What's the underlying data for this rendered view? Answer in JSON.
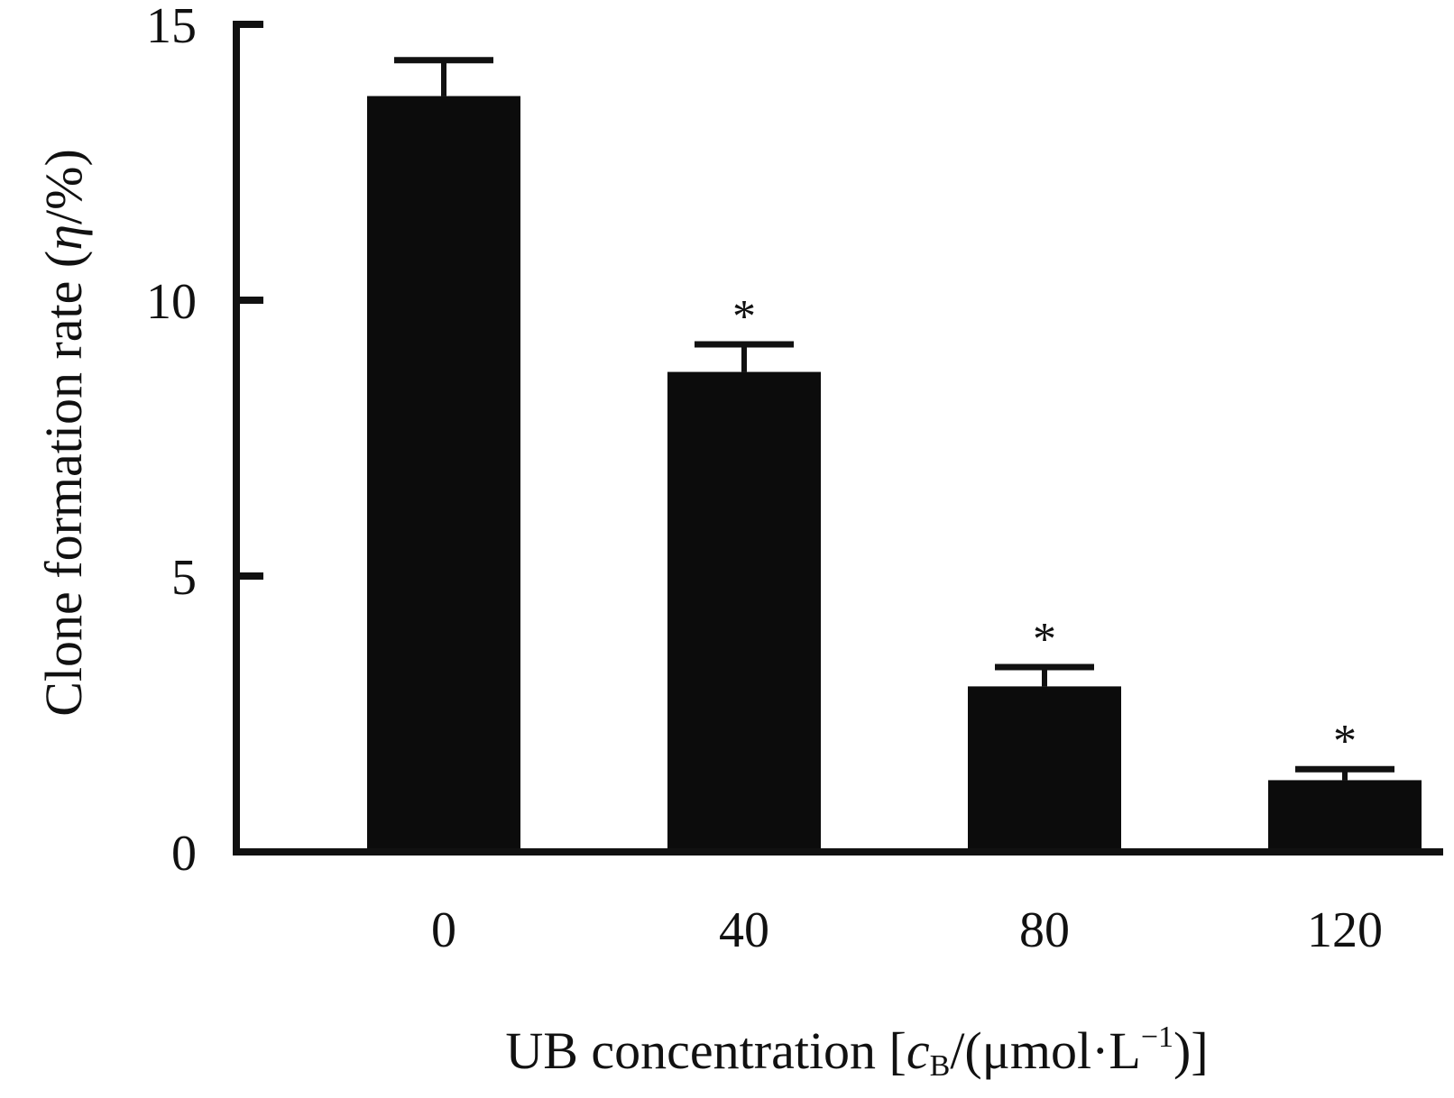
{
  "chart_data": {
    "type": "bar",
    "categories": [
      "0",
      "40",
      "80",
      "120"
    ],
    "values": [
      13.7,
      8.7,
      3.0,
      1.3
    ],
    "error": [
      0.65,
      0.5,
      0.35,
      0.2
    ],
    "significance": [
      "",
      "*",
      "*",
      "*"
    ],
    "xlabel": "UB concentration [cB/(μmol·L⁻¹)]",
    "xlabel_parts": {
      "prefix": "UB concentration [",
      "c": "c",
      "sub": "B",
      "mid": "/(μmol·L",
      "sup": "−1",
      "suffix": ")]"
    },
    "ylabel": "Clone formation rate (η/%)",
    "ylabel_parts": {
      "prefix": "Clone formation rate (",
      "eta": "η",
      "suffix": "/%)"
    },
    "ylim": [
      0,
      15
    ],
    "yticks": [
      "0",
      "5",
      "10",
      "15"
    ],
    "bar_color": "#0c0c0c",
    "grid": false,
    "legend": "none"
  }
}
